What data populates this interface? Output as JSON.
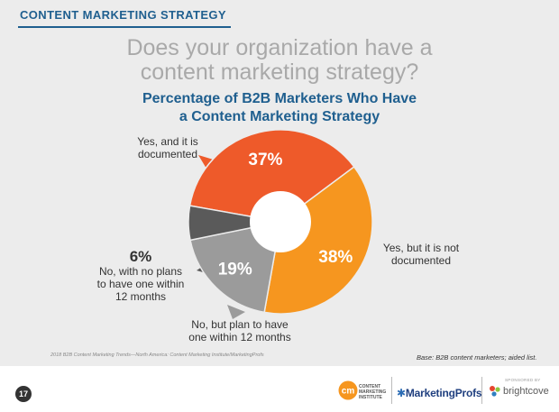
{
  "header": {
    "title": "CONTENT MARKETING STRATEGY"
  },
  "question": {
    "line1": "Does your organization have a",
    "line2": "content marketing strategy?"
  },
  "chart_data": {
    "type": "pie",
    "title_line1": "Percentage of B2B Marketers Who Have",
    "title_line2": "a Content Marketing Strategy",
    "slices": [
      {
        "label_lines": [
          "Yes, and it is",
          "documented"
        ],
        "value": 37,
        "display": "37%",
        "color": "#ee5a2a"
      },
      {
        "label_lines": [
          "Yes, but it is not",
          "documented"
        ],
        "value": 38,
        "display": "38%",
        "color": "#f6961f"
      },
      {
        "label_lines": [
          "No, but plan to have",
          "one within 12 months"
        ],
        "value": 19,
        "display": "19%",
        "color": "#9b9b9b"
      },
      {
        "label_lines": [
          "No, with no plans",
          "to have one within",
          "12 months"
        ],
        "value": 6,
        "display": "6%",
        "color": "#5a5a5a"
      }
    ]
  },
  "source": "2018 B2B Content Marketing Trends—North America: Content Marketing Institute/MarketingProfs",
  "base_note": "Base: B2B content marketers; aided list.",
  "footer": {
    "page_number": "17",
    "cmi_lines": [
      "CONTENT",
      "MARKETING",
      "INSTITUTE"
    ],
    "cmi_mark": "cm",
    "marketingprofs_mark": "✱",
    "marketingprofs": "MarketingProfs",
    "sponsor_label": "SPONSORED BY",
    "brightcove": "brightcove"
  }
}
